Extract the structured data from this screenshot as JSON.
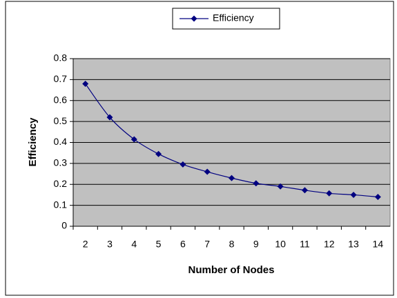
{
  "chart_data": {
    "type": "line",
    "x_label": "Number of Nodes",
    "y_label": "Efficiency",
    "categories": [
      "2",
      "3",
      "4",
      "5",
      "6",
      "7",
      "8",
      "9",
      "10",
      "11",
      "12",
      "13",
      "14"
    ],
    "series": [
      {
        "name": "Efficiency",
        "color": "#000080",
        "values": [
          0.68,
          0.52,
          0.415,
          0.345,
          0.295,
          0.26,
          0.23,
          0.205,
          0.19,
          0.172,
          0.157,
          0.15,
          0.14
        ]
      }
    ],
    "ylim": [
      0,
      0.8
    ],
    "yticks": [
      0,
      0.1,
      0.2,
      0.3,
      0.4,
      0.5,
      0.6,
      0.7,
      0.8
    ],
    "grid": true,
    "legend": "top",
    "plot_background": "#c0c0c0"
  }
}
